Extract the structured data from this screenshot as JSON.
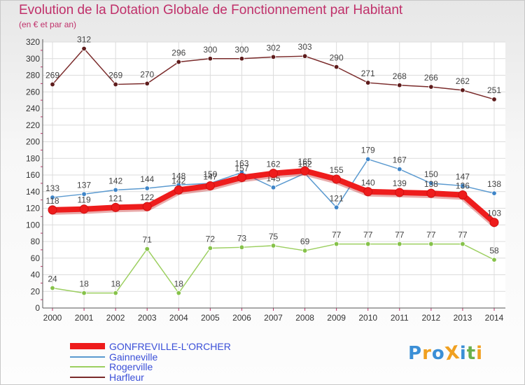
{
  "title": "Evolution de la Dotation Globale de Fonctionnement par Habitant",
  "subtitle": "(en € et par an)",
  "logo": {
    "text": "ProXiti",
    "letters": [
      "P",
      "r",
      "o",
      "X",
      "i",
      "t",
      "i"
    ],
    "colors": [
      "#3b8fd6",
      "#f0a020",
      "#3b8fd6",
      "#f0a020",
      "#3b8fd6",
      "#6ab04c",
      "#f0a020"
    ]
  },
  "chart_data": {
    "type": "line",
    "title": "Evolution de la Dotation Globale de Fonctionnement par Habitant",
    "subtitle": "(en € et par an)",
    "xlabel": "",
    "ylabel": "",
    "categories": [
      "2000",
      "2001",
      "2002",
      "2003",
      "2004",
      "2005",
      "2006",
      "2007",
      "2008",
      "2009",
      "2010",
      "2011",
      "2012",
      "2013",
      "2014"
    ],
    "ylim": [
      0,
      320
    ],
    "yticks": [
      0,
      20,
      40,
      60,
      80,
      100,
      120,
      140,
      160,
      180,
      200,
      220,
      240,
      260,
      280,
      300,
      320
    ],
    "grid": true,
    "legend_position": "bottom-left",
    "series": [
      {
        "name": "Harfleur",
        "color": "#7a2a2a",
        "point_color": "#5e1c1c",
        "thick": false,
        "values": [
          269,
          312,
          269,
          270,
          296,
          300,
          300,
          302,
          303,
          290,
          271,
          268,
          266,
          262,
          251
        ],
        "labels": [
          "269",
          "312",
          "269",
          "270",
          "296",
          "300",
          "300",
          "302",
          "303",
          "290",
          "271",
          "268",
          "266",
          "262",
          "251"
        ]
      },
      {
        "name": "Gainneville",
        "color": "#5b9ad0",
        "point_color": "#3f85c8",
        "thick": false,
        "values": [
          133,
          137,
          142,
          144,
          148,
          150,
          163,
          145,
          162,
          121,
          179,
          167,
          150,
          147,
          138
        ],
        "labels": [
          "133",
          "137",
          "142",
          "144",
          "148",
          "150",
          "163",
          "145",
          "162",
          "121",
          "179",
          "167",
          "150",
          "147",
          "138"
        ]
      },
      {
        "name": "Rogerville",
        "color": "#9ccf60",
        "point_color": "#86c24a",
        "thick": false,
        "values": [
          24,
          18,
          18,
          71,
          18,
          72,
          73,
          75,
          69,
          77,
          77,
          77,
          77,
          77,
          58
        ],
        "labels": [
          "24",
          "18",
          "18",
          "71",
          "18",
          "72",
          "73",
          "75",
          "69",
          "77",
          "77",
          "77",
          "77",
          "77",
          "58"
        ]
      },
      {
        "name": "GONFREVILLE-L'ORCHER",
        "color": "#ee1c1c",
        "point_color": "#ee1c1c",
        "thick": true,
        "values": [
          118,
          119,
          121,
          122,
          142,
          147,
          157,
          162,
          165,
          155,
          140,
          139,
          138,
          136,
          103
        ],
        "labels": [
          "118",
          "119",
          "121",
          "122",
          "142",
          "147",
          "157",
          "162",
          "165",
          "155",
          "140",
          "139",
          "138",
          "136",
          "103"
        ]
      }
    ],
    "legend_order": [
      "GONFREVILLE-L'ORCHER",
      "Gainneville",
      "Rogerville",
      "Harfleur"
    ]
  }
}
